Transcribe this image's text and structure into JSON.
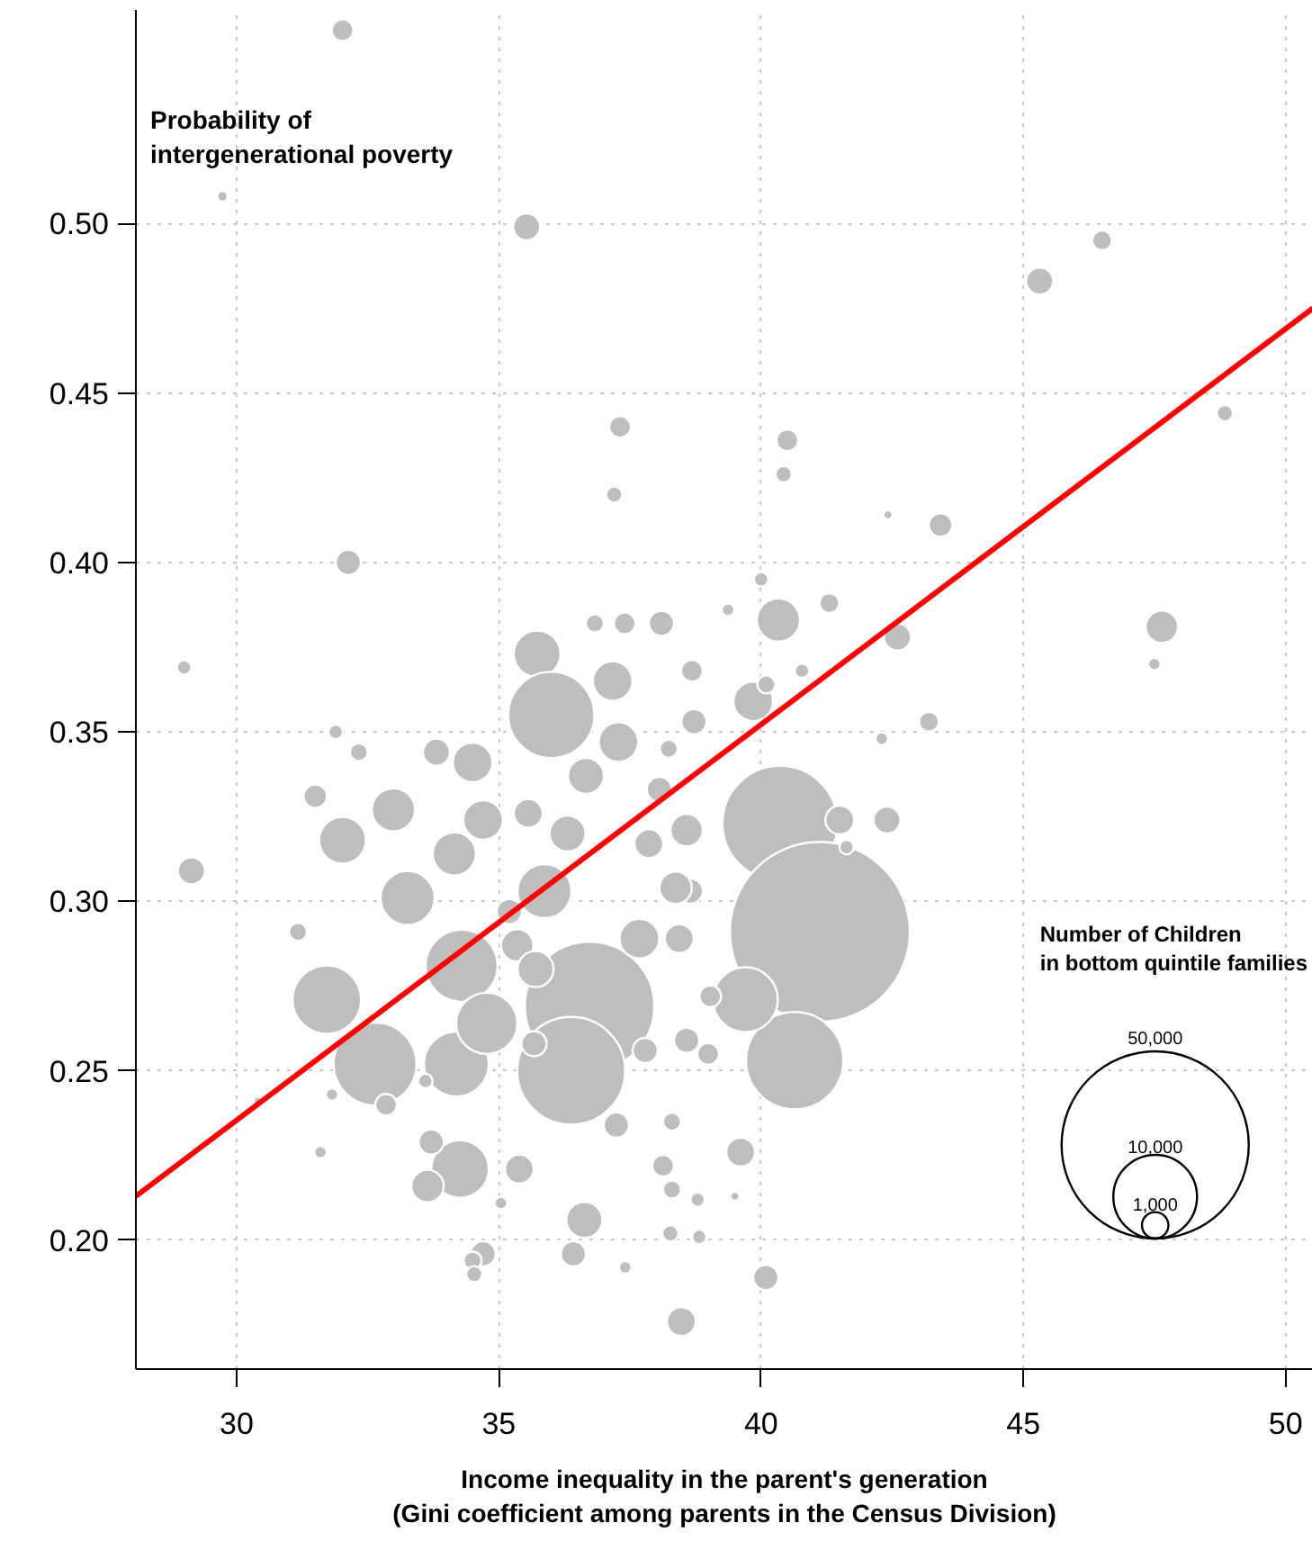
{
  "chart_data": {
    "type": "bubble",
    "xlabel": "Income inequality in the parent's generation\n(Gini coefficient among parents in the Census Division)",
    "ylabel": "Probability of\nintergenerational poverty",
    "legend_title": "Number of Children\nin bottom quintile families",
    "size_legend": [
      {
        "value": 1000,
        "label": "1,000"
      },
      {
        "value": 10000,
        "label": "10,000"
      },
      {
        "value": 50000,
        "label": "50,000"
      }
    ],
    "xlim": [
      28.08,
      50.52
    ],
    "ylim": [
      0.162,
      0.563
    ],
    "xticks": [
      30,
      35,
      40,
      45,
      50
    ],
    "yticks": [
      {
        "value": 0.2,
        "label": "0.20"
      },
      {
        "value": 0.25,
        "label": "0.25"
      },
      {
        "value": 0.3,
        "label": "0.30"
      },
      {
        "value": 0.35,
        "label": "0.35"
      },
      {
        "value": 0.4,
        "label": "0.40"
      },
      {
        "value": 0.45,
        "label": "0.45"
      },
      {
        "value": 0.5,
        "label": "0.50"
      }
    ],
    "grid": true,
    "series": [
      {
        "color": "#bebebe",
        "x": [
          32.02,
          29.73,
          35.53,
          45.31,
          46.5,
          48.84,
          37.31,
          37.2,
          40.5,
          40.43,
          42.42,
          43.42,
          32.13,
          29.0,
          29.14,
          47.64,
          47.5,
          43.2,
          42.6,
          42.3,
          42.4,
          41.3,
          40.33,
          39.85,
          39.37,
          40.0,
          40.1,
          40.78,
          40.36,
          41.12,
          40.64,
          39.7,
          38.65,
          35.73,
          36.0,
          37.17,
          37.4,
          38.1,
          38.68,
          38.72,
          37.28,
          36.66,
          34.5,
          33.81,
          32.99,
          32.02,
          31.5,
          31.89,
          32.33,
          31.17,
          31.72,
          32.64,
          34.19,
          33.26,
          34.29,
          34.77,
          36.73,
          36.38,
          35.87,
          34.7,
          35.56,
          36.31,
          34.15,
          35.35,
          35.2,
          35.7,
          35.67,
          37.86,
          37.68,
          37.79,
          38.44,
          38.37,
          38.58,
          38.06,
          38.24,
          39.03,
          38.58,
          38.99,
          38.3,
          37.24,
          34.26,
          33.71,
          33.64,
          35.39,
          35.04,
          33.6,
          32.85,
          34.7,
          34.5,
          34.53,
          36.42,
          36.63,
          38.3,
          38.13,
          38.82,
          38.27,
          37.41,
          38.48,
          40.09,
          39.61,
          38.79,
          39.5,
          30.41,
          31.6,
          31.82,
          41.5,
          41.63,
          36.83
        ],
        "values": [
          0.557,
          0.508,
          0.499,
          0.483,
          0.495,
          0.444,
          0.44,
          0.42,
          0.436,
          0.426,
          0.414,
          0.411,
          0.4,
          0.369,
          0.309,
          0.381,
          0.37,
          0.353,
          0.378,
          0.348,
          0.324,
          0.388,
          0.383,
          0.359,
          0.386,
          0.395,
          0.364,
          0.368,
          0.323,
          0.291,
          0.253,
          0.271,
          0.303,
          0.373,
          0.355,
          0.365,
          0.382,
          0.382,
          0.368,
          0.353,
          0.347,
          0.337,
          0.341,
          0.344,
          0.327,
          0.318,
          0.331,
          0.35,
          0.344,
          0.291,
          0.271,
          0.252,
          0.252,
          0.301,
          0.281,
          0.264,
          0.269,
          0.25,
          0.303,
          0.324,
          0.326,
          0.32,
          0.314,
          0.287,
          0.297,
          0.28,
          0.258,
          0.317,
          0.289,
          0.256,
          0.289,
          0.304,
          0.321,
          0.333,
          0.345,
          0.272,
          0.259,
          0.255,
          0.235,
          0.234,
          0.221,
          0.229,
          0.216,
          0.221,
          0.211,
          0.247,
          0.24,
          0.196,
          0.194,
          0.19,
          0.196,
          0.206,
          0.215,
          0.222,
          0.201,
          0.202,
          0.192,
          0.176,
          0.189,
          0.226,
          0.212,
          0.213,
          0.241,
          0.226,
          0.243,
          0.324,
          0.316,
          0.382
        ],
        "sizes": [
          665,
          166,
          1040,
          1040,
          560,
          374,
          665,
          374,
          665,
          374,
          115,
          780,
          905,
          296,
          1040,
          1500,
          226,
          560,
          1040,
          226,
          1040,
          560,
          2660,
          2240,
          226,
          296,
          462,
          296,
          18900,
          46200,
          13500,
          6000,
          905,
          3120,
          10600,
          2240,
          665,
          905,
          665,
          905,
          2240,
          1850,
          2240,
          1040,
          2660,
          3120,
          780,
          296,
          462,
          462,
          6700,
          9780,
          6000,
          4160,
          7400,
          5340,
          23900,
          16600,
          4160,
          2240,
          1180,
          1850,
          2660,
          1500,
          905,
          1850,
          905,
          1180,
          2240,
          905,
          1180,
          1500,
          1500,
          905,
          462,
          665,
          905,
          665,
          462,
          905,
          4730,
          905,
          1500,
          1180,
          226,
          296,
          665,
          905,
          462,
          374,
          905,
          1850,
          462,
          665,
          296,
          374,
          226,
          1180,
          905,
          1180,
          296,
          115,
          115,
          226,
          226,
          1180,
          296,
          462
        ]
      },
      {
        "type": "line",
        "color": "#ff0000",
        "x": [
          28.08,
          50.52
        ],
        "values": [
          0.213,
          0.475
        ]
      }
    ]
  }
}
